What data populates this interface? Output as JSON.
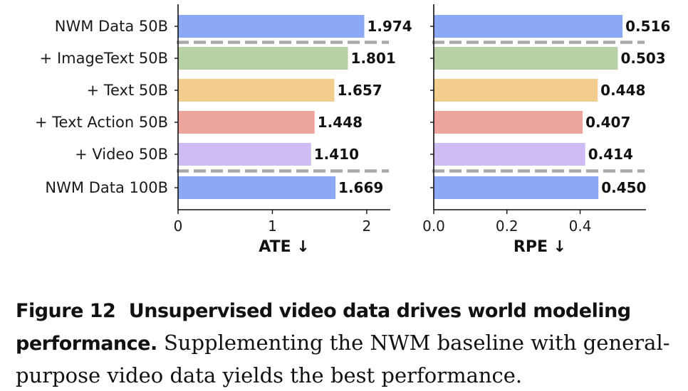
{
  "chart_data": [
    {
      "type": "bar",
      "orientation": "horizontal",
      "categories": [
        "NWM Data 50B",
        "+ ImageText 50B",
        "+ Text 50B",
        "+ Text Action 50B",
        "+ Video 50B",
        "NWM Data 100B"
      ],
      "values": [
        1.974,
        1.801,
        1.657,
        1.448,
        1.41,
        1.669
      ],
      "value_labels": [
        "1.974",
        "1.801",
        "1.657",
        "1.448",
        "1.410",
        "1.669"
      ],
      "xlabel": "ATE ↓",
      "xlim": [
        0,
        2.25
      ],
      "xticks": [
        0,
        1,
        2
      ],
      "xtick_labels": [
        "0",
        "1",
        "2"
      ],
      "separators_after": [
        0,
        4
      ]
    },
    {
      "type": "bar",
      "orientation": "horizontal",
      "categories": [
        "NWM Data 50B",
        "+ ImageText 50B",
        "+ Text 50B",
        "+ Text Action 50B",
        "+ Video 50B",
        "NWM Data 100B"
      ],
      "values": [
        0.516,
        0.503,
        0.448,
        0.407,
        0.414,
        0.45
      ],
      "value_labels": [
        "0.516",
        "0.503",
        "0.448",
        "0.407",
        "0.414",
        "0.450"
      ],
      "xlabel": "RPE ↓",
      "xlim": [
        0,
        0.58
      ],
      "xticks": [
        0,
        0.2,
        0.4
      ],
      "xtick_labels": [
        "0.0",
        "0.2",
        "0.4"
      ],
      "separators_after": [
        0,
        4
      ]
    }
  ],
  "bar_colors": [
    "#8ba9f5",
    "#b8d0a6",
    "#f2cd8e",
    "#eea5a0",
    "#d0bcf4",
    "#8ba9f5"
  ],
  "caption": {
    "label": "Figure 12",
    "title": "Unsupervised video data drives world modeling performance.",
    "body": "Supplementing the NWM baseline with general-purpose video data yields the best performance."
  }
}
